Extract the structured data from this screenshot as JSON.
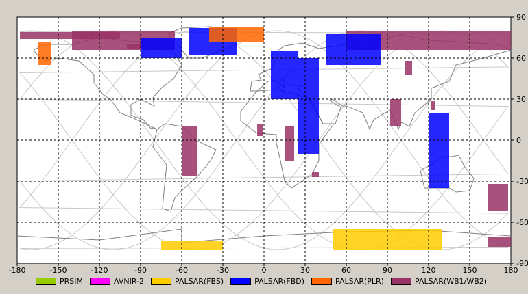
{
  "map": {
    "lon_range": [
      -180,
      180
    ],
    "lat_range": [
      -90,
      90
    ],
    "x_ticks": [
      "-180",
      "-150",
      "-120",
      "-90",
      "-60",
      "-30",
      "0",
      "30",
      "60",
      "90",
      "120",
      "150",
      "180"
    ],
    "y_ticks": [
      "90",
      "60",
      "30",
      "0",
      "-30",
      "-60",
      "-90"
    ],
    "grid": "dashed",
    "background": "#ffffff",
    "coast_color": "#808080",
    "orbit_color": "#c8c8c8"
  },
  "legend": [
    {
      "label": "PRSIM",
      "color": "#99cc00"
    },
    {
      "label": "AVNIR-2",
      "color": "#ff00ff"
    },
    {
      "label": "PALSAR(FBS)",
      "color": "#ffcc00"
    },
    {
      "label": "PALSAR(FBD)",
      "color": "#0000ff"
    },
    {
      "label": "PALSAR(PLR)",
      "color": "#ff6600"
    },
    {
      "label": "PALSAR(WB1/WB2)",
      "color": "#993366"
    }
  ],
  "chart_data": {
    "type": "map",
    "swaths": [
      {
        "sensor": "PALSAR(WB1/WB2)",
        "lon": [
          -178,
          -105
        ],
        "lat": [
          74,
          79
        ]
      },
      {
        "sensor": "PALSAR(WB1/WB2)",
        "lon": [
          -140,
          -65
        ],
        "lat": [
          66,
          80
        ]
      },
      {
        "sensor": "PALSAR(WB1/WB2)",
        "lon": [
          -100,
          -90
        ],
        "lat": [
          67,
          70
        ]
      },
      {
        "sensor": "PALSAR(WB1/WB2)",
        "lon": [
          -60,
          -49
        ],
        "lat": [
          -26,
          10
        ]
      },
      {
        "sensor": "PALSAR(WB1/WB2)",
        "lon": [
          -5,
          -1
        ],
        "lat": [
          3,
          12
        ]
      },
      {
        "sensor": "PALSAR(WB1/WB2)",
        "lon": [
          15,
          22
        ],
        "lat": [
          -15,
          10
        ]
      },
      {
        "sensor": "PALSAR(WB1/WB2)",
        "lon": [
          35,
          40
        ],
        "lat": [
          -27,
          -23
        ]
      },
      {
        "sensor": "PALSAR(WB1/WB2)",
        "lon": [
          60,
          180
        ],
        "lat": [
          66,
          80
        ]
      },
      {
        "sensor": "PALSAR(WB1/WB2)",
        "lon": [
          92,
          100
        ],
        "lat": [
          10,
          30
        ]
      },
      {
        "sensor": "PALSAR(WB1/WB2)",
        "lon": [
          103,
          108
        ],
        "lat": [
          48,
          58
        ]
      },
      {
        "sensor": "PALSAR(WB1/WB2)",
        "lon": [
          122,
          125
        ],
        "lat": [
          22,
          29
        ]
      },
      {
        "sensor": "PALSAR(WB1/WB2)",
        "lon": [
          163,
          178
        ],
        "lat": [
          -52,
          -32
        ]
      },
      {
        "sensor": "PALSAR(WB1/WB2)",
        "lon": [
          163,
          180
        ],
        "lat": [
          -78,
          -71
        ]
      },
      {
        "sensor": "PALSAR(FBD)",
        "lon": [
          -90,
          -60
        ],
        "lat": [
          60,
          75
        ]
      },
      {
        "sensor": "PALSAR(FBD)",
        "lon": [
          -55,
          -20
        ],
        "lat": [
          62,
          82
        ]
      },
      {
        "sensor": "PALSAR(FBD)",
        "lon": [
          5,
          25
        ],
        "lat": [
          30,
          65
        ]
      },
      {
        "sensor": "PALSAR(FBD)",
        "lon": [
          25,
          40
        ],
        "lat": [
          -10,
          60
        ]
      },
      {
        "sensor": "PALSAR(FBD)",
        "lon": [
          45,
          85
        ],
        "lat": [
          55,
          78
        ]
      },
      {
        "sensor": "PALSAR(FBD)",
        "lon": [
          120,
          135
        ],
        "lat": [
          -35,
          20
        ]
      },
      {
        "sensor": "PALSAR(FBS)",
        "lon": [
          -75,
          -30
        ],
        "lat": [
          -80,
          -74
        ]
      },
      {
        "sensor": "PALSAR(FBS)",
        "lon": [
          50,
          130
        ],
        "lat": [
          -80,
          -65
        ]
      },
      {
        "sensor": "PALSAR(PLR)",
        "lon": [
          -165,
          -155
        ],
        "lat": [
          55,
          72
        ]
      },
      {
        "sensor": "PALSAR(PLR)",
        "lon": [
          -40,
          0
        ],
        "lat": [
          72,
          83
        ]
      }
    ]
  }
}
